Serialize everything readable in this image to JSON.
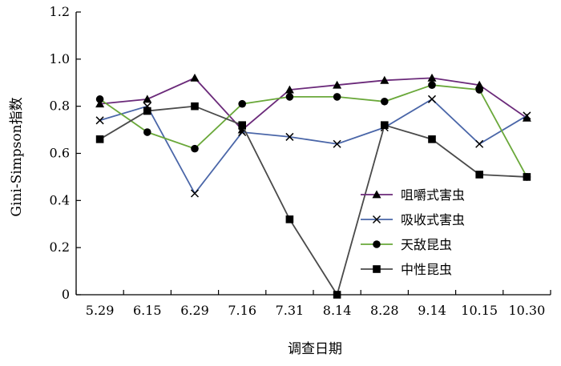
{
  "chart_data": {
    "type": "line",
    "title": "",
    "xlabel": "调查日期",
    "ylabel": "Gini-Simpson指数",
    "ylim": [
      0,
      1.2
    ],
    "yticks": [
      "0",
      "0.2",
      "0.4",
      "0.6",
      "0.8",
      "1.0",
      "1.2"
    ],
    "categories": [
      "5.29",
      "6.15",
      "6.29",
      "7.16",
      "7.31",
      "8.14",
      "8.28",
      "9.14",
      "10.15",
      "10.30"
    ],
    "grid": false,
    "legend_position": "lower-right",
    "series": [
      {
        "name": "咀嚼式害虫",
        "color": "#6b2a7a",
        "marker": "triangle",
        "values": [
          0.81,
          0.83,
          0.92,
          0.7,
          0.87,
          0.89,
          0.91,
          0.92,
          0.89,
          0.75
        ]
      },
      {
        "name": "吸收式害虫",
        "color": "#4a66a8",
        "marker": "cross",
        "values": [
          0.74,
          0.8,
          0.43,
          0.69,
          0.67,
          0.64,
          0.71,
          0.83,
          0.64,
          0.76
        ]
      },
      {
        "name": "天敌昆虫",
        "color": "#6aa83a",
        "marker": "circle",
        "values": [
          0.83,
          0.69,
          0.62,
          0.81,
          0.84,
          0.84,
          0.82,
          0.89,
          0.87,
          0.5
        ]
      },
      {
        "name": "中性昆虫",
        "color": "#4a4a4a",
        "marker": "square",
        "values": [
          0.66,
          0.78,
          0.8,
          0.72,
          0.32,
          0.0,
          0.72,
          0.66,
          0.51,
          0.5
        ]
      }
    ]
  }
}
